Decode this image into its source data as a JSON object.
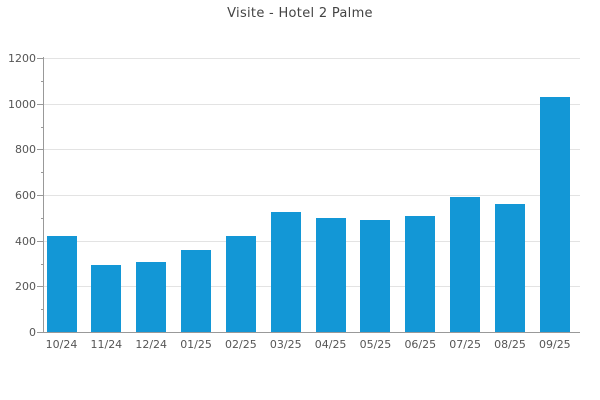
{
  "chart_data": {
    "type": "bar",
    "title": "Visite - Hotel 2 Palme",
    "categories": [
      "10/24",
      "11/24",
      "12/24",
      "01/25",
      "02/25",
      "03/25",
      "04/25",
      "05/25",
      "06/25",
      "07/25",
      "08/25",
      "09/25"
    ],
    "values": [
      420,
      295,
      305,
      360,
      420,
      525,
      500,
      490,
      510,
      590,
      560,
      1030
    ],
    "xlabel": "",
    "ylabel": "",
    "ylim": [
      0,
      1200
    ],
    "ytick_step": 200,
    "yminor_tick_step": 100,
    "ytick_labels": [
      "0",
      "200",
      "400",
      "600",
      "800",
      "1000",
      "1200"
    ],
    "grid": "horizontal-only",
    "legend_position": "none",
    "colors": {
      "bar": "#1397d6",
      "grid": "#e3e3e3",
      "axis": "#999999",
      "tick_label": "#555555",
      "title": "#444444",
      "background": "#ffffff"
    }
  }
}
